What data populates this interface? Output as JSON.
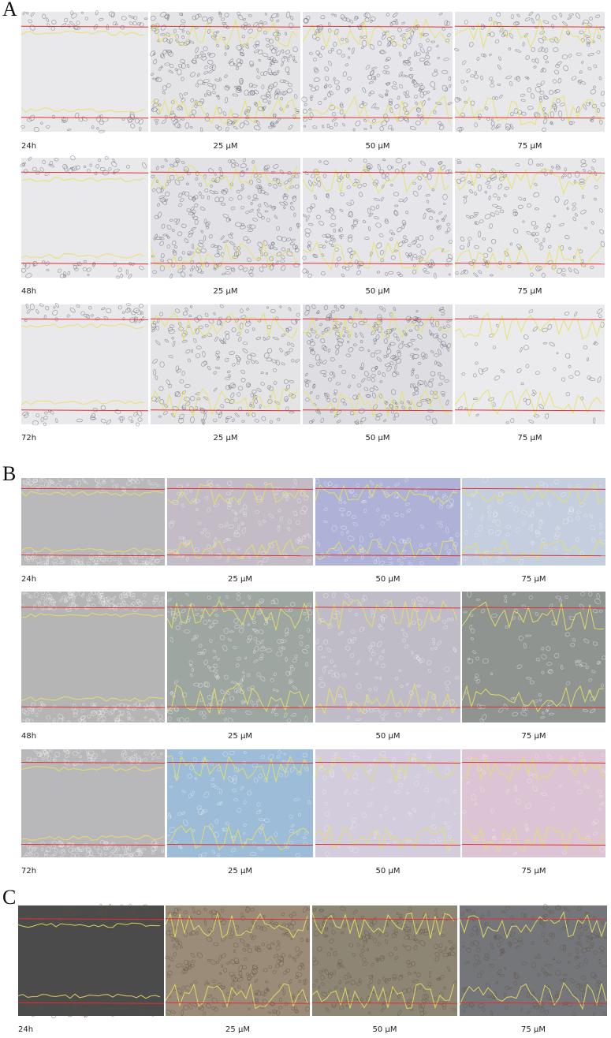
{
  "panels": [
    {
      "letter": "A",
      "rows": [
        {
          "time": "24h",
          "labels": [
            "25 µM",
            "50 µM",
            "75 µM"
          ]
        },
        {
          "time": "48h",
          "labels": [
            "25 µM",
            "50 µM",
            "75 µM"
          ]
        },
        {
          "time": "72h",
          "labels": [
            "25 µM",
            "50 µM",
            "75 µM"
          ]
        }
      ]
    },
    {
      "letter": "B",
      "rows": [
        {
          "time": "24h",
          "labels": [
            "25 µM",
            "50 µM",
            "75 µM"
          ]
        },
        {
          "time": "48h",
          "labels": [
            "25 µM",
            "50 µM",
            "75 µM"
          ]
        },
        {
          "time": "72h",
          "labels": [
            "25 µM",
            "50 µM",
            "75 µM"
          ]
        }
      ]
    },
    {
      "letter": "C",
      "rows": [
        {
          "time": "24h",
          "labels": [
            "25 µM",
            "50 µM",
            "75 µM"
          ]
        }
      ]
    }
  ]
}
